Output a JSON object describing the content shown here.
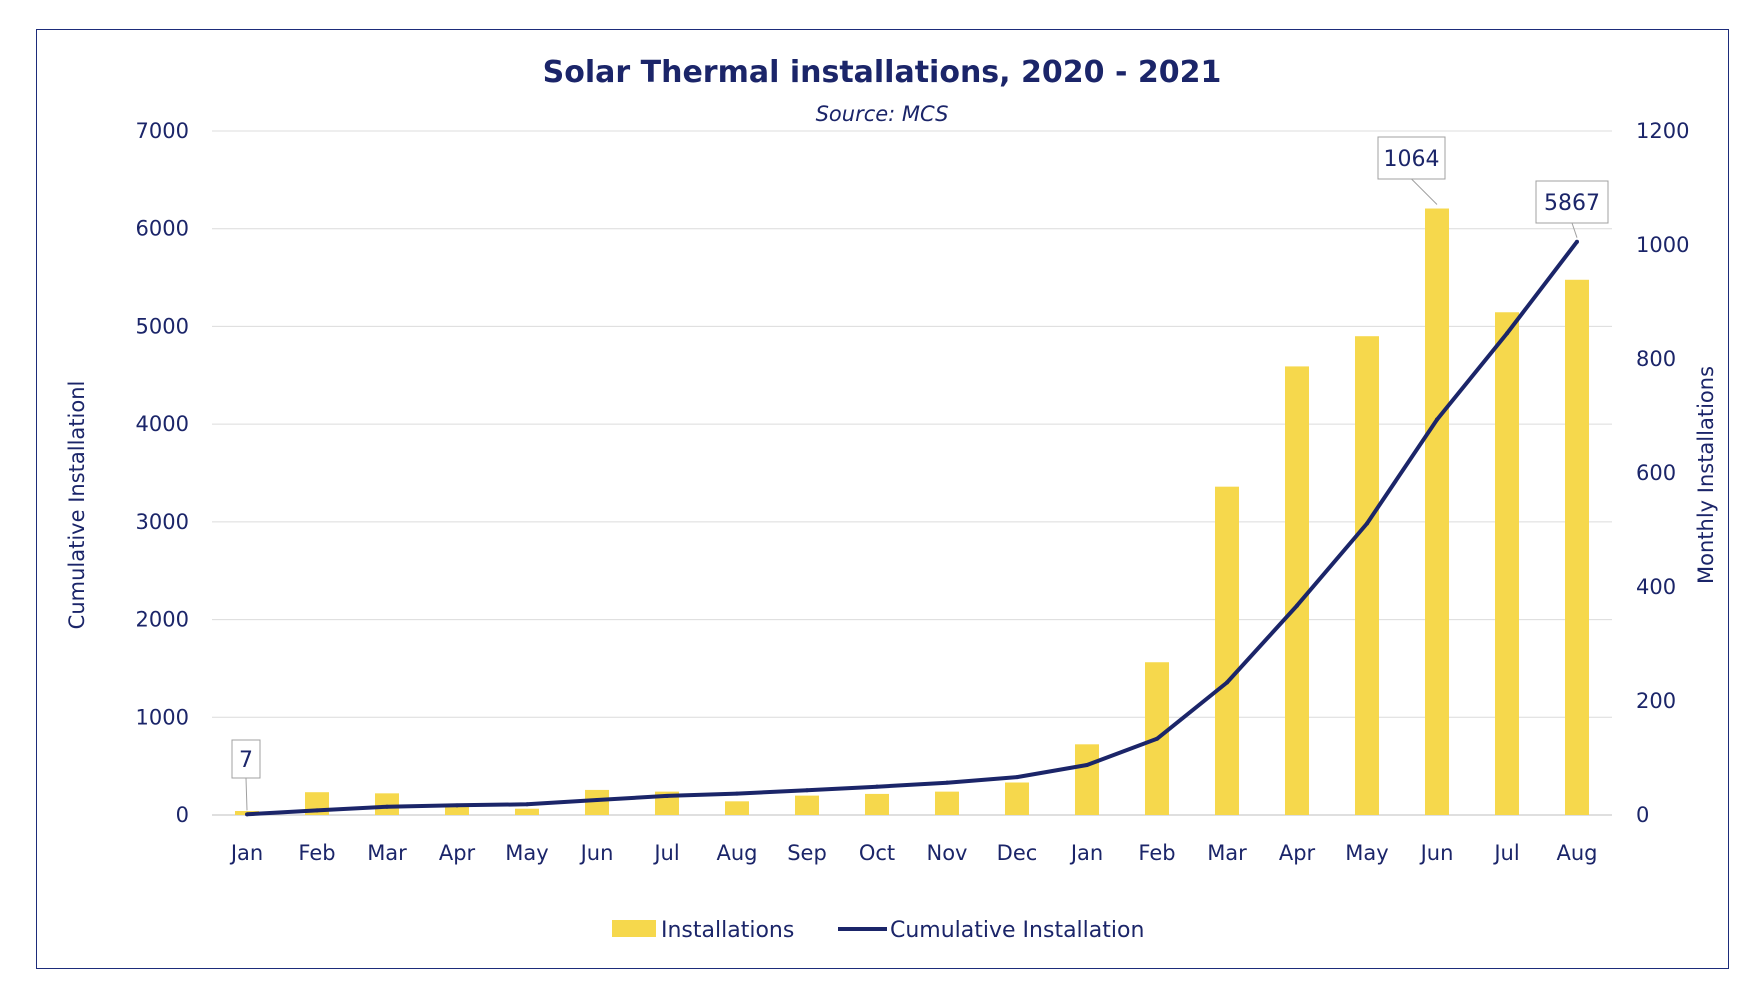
{
  "chart_data": {
    "type": "bar+line",
    "title": "Solar Thermal installations, 2020 - 2021",
    "subtitle": "Source: MCS",
    "categories": [
      "Jan",
      "Feb",
      "Mar",
      "Apr",
      "May",
      "Jun",
      "Jul",
      "Aug",
      "Sep",
      "Oct",
      "Nov",
      "Dec",
      "Jan",
      "Feb",
      "Mar",
      "Apr",
      "May",
      "Jun",
      "Jul",
      "Aug"
    ],
    "series": [
      {
        "name": "Installations",
        "type": "bar",
        "axis": "right",
        "color": "#f6d84c",
        "values": [
          7,
          40,
          38,
          14,
          11,
          44,
          41,
          24,
          34,
          37,
          41,
          57,
          124,
          268,
          576,
          787,
          840,
          1064,
          882,
          939
        ]
      },
      {
        "name": "Cumulative Installation",
        "type": "line",
        "axis": "left",
        "color": "#1b2569",
        "values": [
          7,
          47,
          85,
          99,
          110,
          154,
          195,
          219,
          253,
          290,
          331,
          388,
          512,
          780,
          1356,
          2143,
          2983,
          4047,
          4929,
          5867
        ]
      }
    ],
    "y_left": {
      "label": "Cumulative Installationl",
      "lim": [
        0,
        7000
      ],
      "ticks": [
        "0",
        "1000",
        "2000",
        "3000",
        "4000",
        "5000",
        "6000",
        "7000"
      ]
    },
    "y_right": {
      "label": "Monthly Installations",
      "lim": [
        0,
        1200
      ],
      "ticks": [
        "0",
        "200",
        "400",
        "600",
        "800",
        "1000",
        "1200"
      ]
    },
    "callouts": [
      {
        "text": "7",
        "series": "Cumulative Installation",
        "index": 0
      },
      {
        "text": "1064",
        "series": "Installations",
        "index": 17
      },
      {
        "text": "5867",
        "series": "Cumulative Installation",
        "index": 19
      }
    ],
    "grid": true,
    "legend": "bottom-center"
  }
}
